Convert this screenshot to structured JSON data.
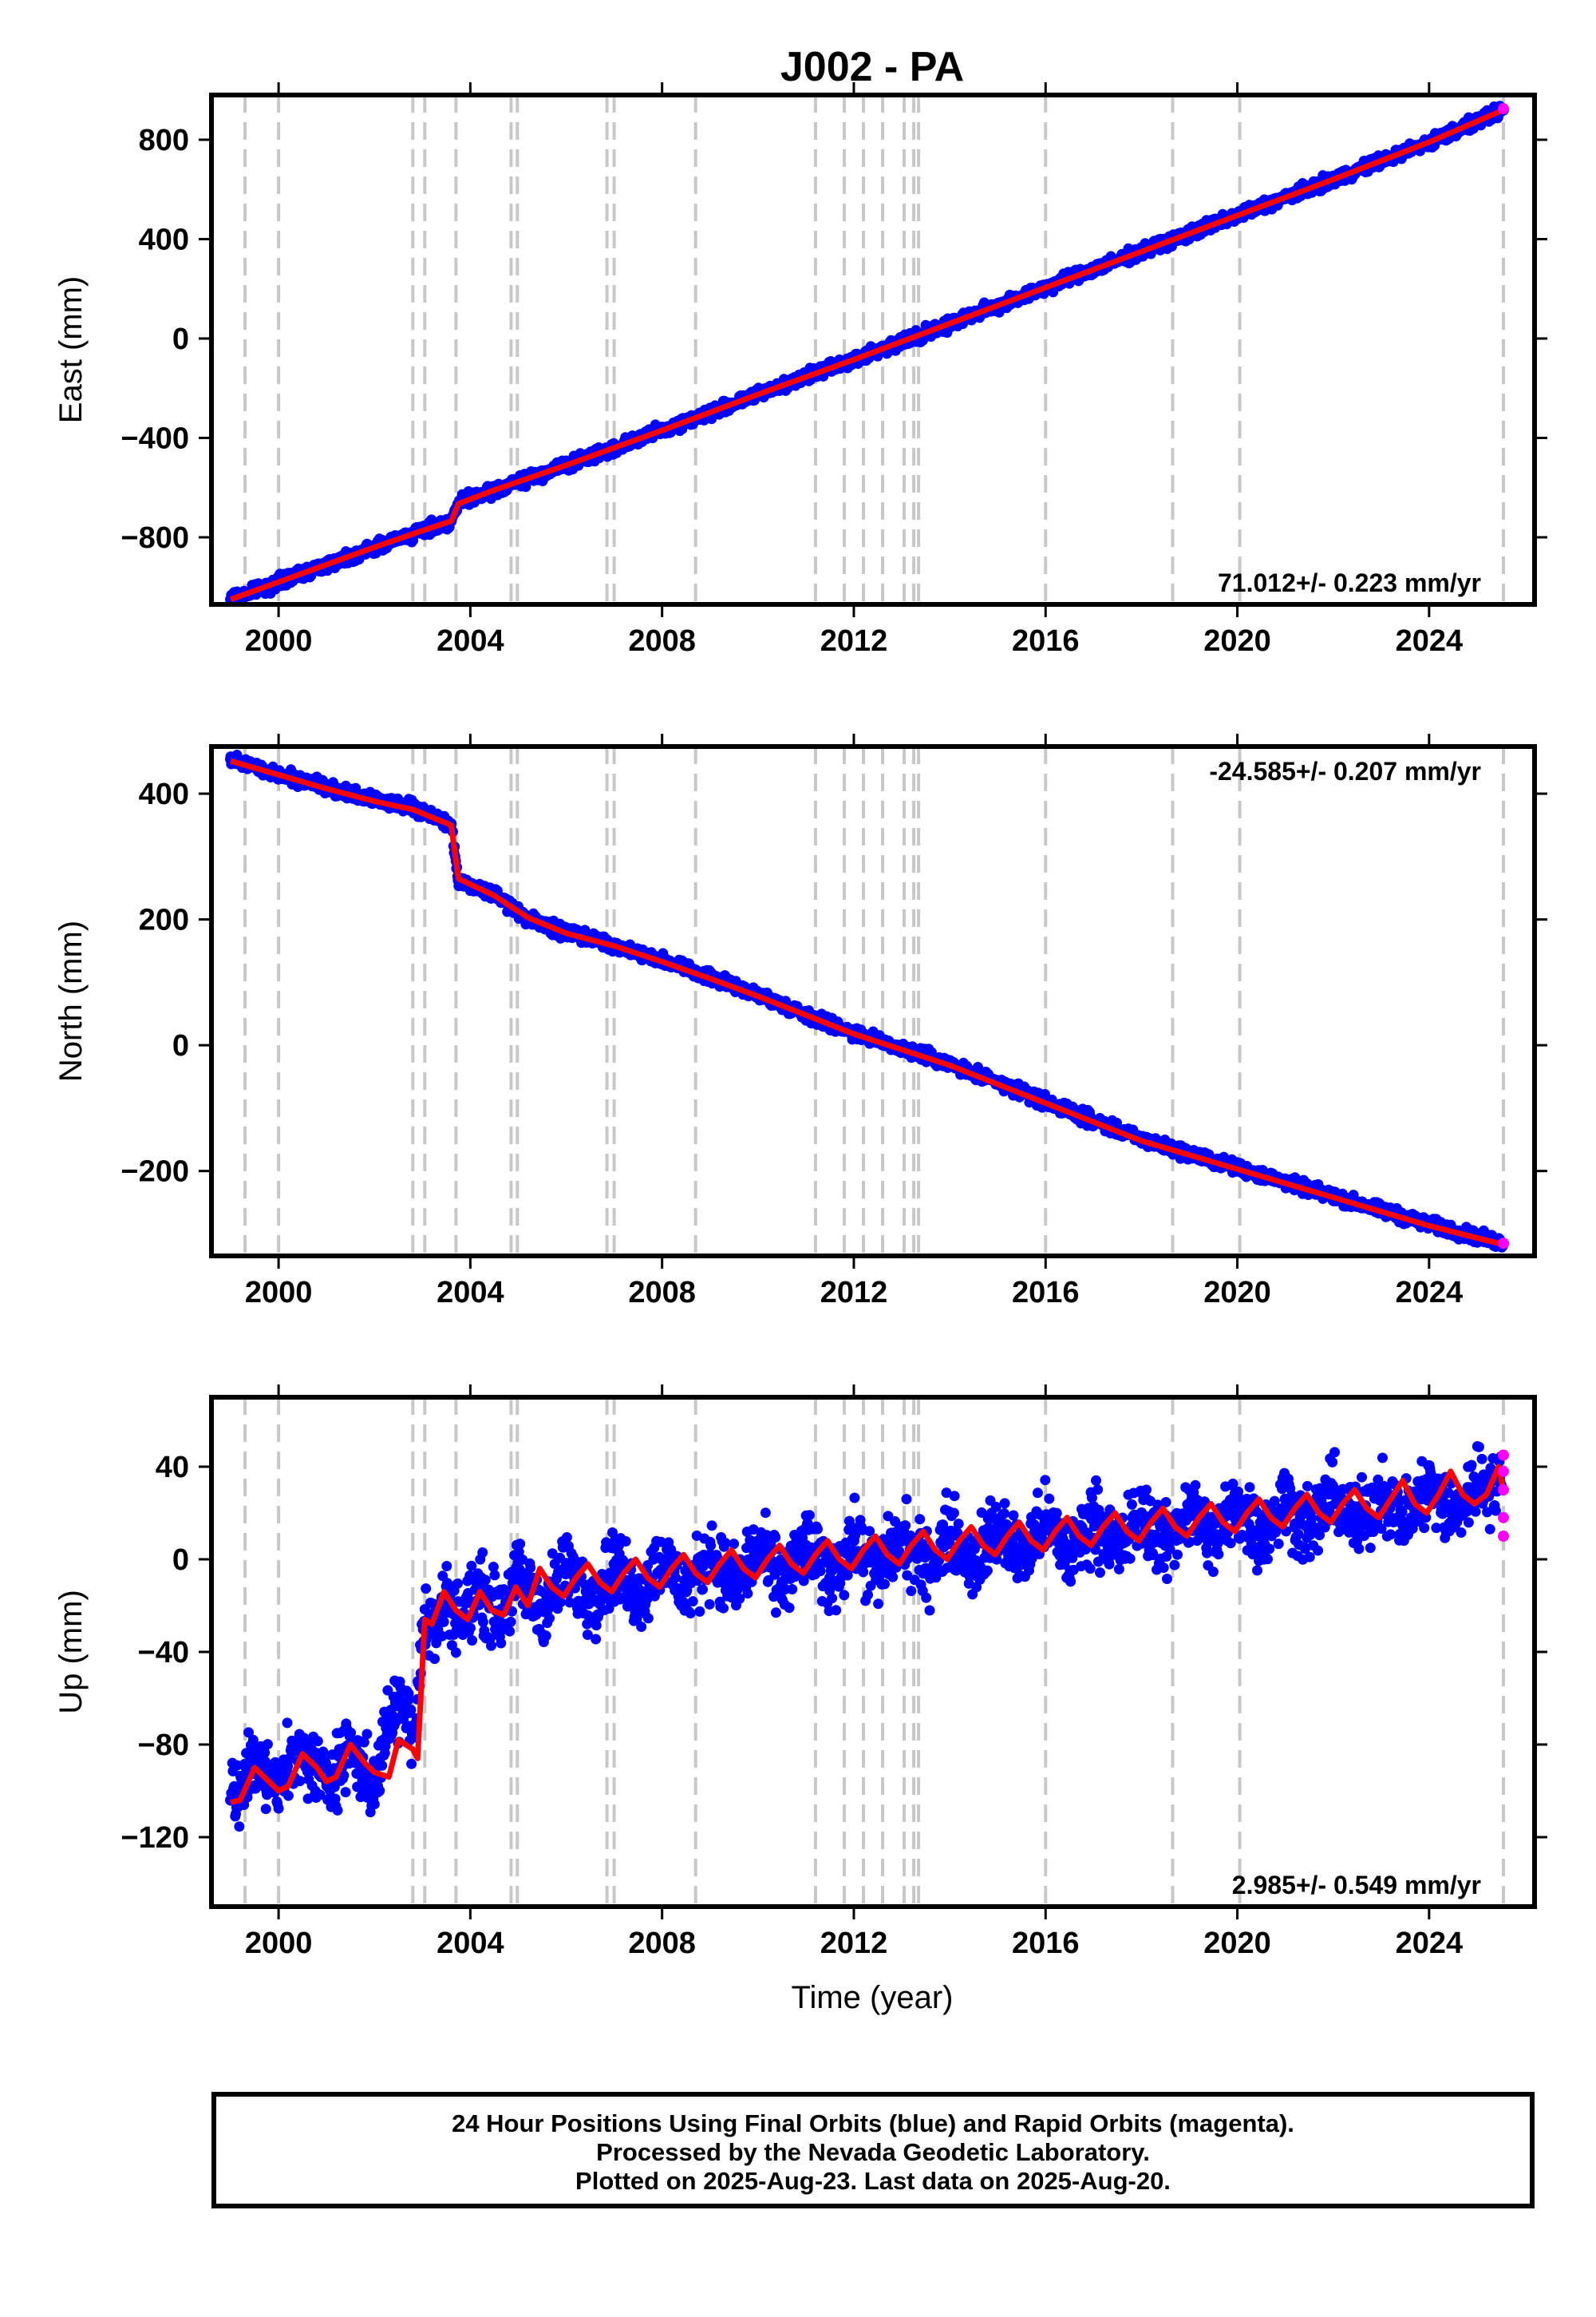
{
  "title": "J002 - PA",
  "xlabel": "Time (year)",
  "footer": [
    "24 Hour Positions Using Final Orbits (blue) and Rapid Orbits (magenta).",
    "Processed by the Nevada Geodetic Laboratory.",
    "Plotted on 2025-Aug-23. Last data on 2025-Aug-20."
  ],
  "colors": {
    "final": "#0000ff",
    "rapid": "#ff00ff",
    "model": "#ff0000",
    "event_line": "#c8c8c8"
  },
  "chart_data": [
    {
      "type": "scatter",
      "ylabel": "East (mm)",
      "xlim": [
        1998.6,
        2026.2
      ],
      "ylim": [
        -1070,
        980
      ],
      "xticks": [
        2000,
        2004,
        2008,
        2012,
        2016,
        2020,
        2024
      ],
      "yticks": [
        -800,
        -400,
        0,
        400,
        800
      ],
      "rate": "71.012+/- 0.223 mm/yr",
      "event_lines": [
        1999.3,
        2000.0,
        2002.8,
        2003.05,
        2003.7,
        2004.85,
        2004.98,
        2006.85,
        2007.0,
        2008.7,
        2011.2,
        2011.8,
        2012.2,
        2012.6,
        2013.05,
        2013.25,
        2013.35,
        2016.0,
        2018.65,
        2020.05,
        2025.55
      ],
      "series": [
        {
          "name": "Final Orbits",
          "kind": "points",
          "x": [
            1999.0,
            2000.0,
            2001.0,
            2002.0,
            2002.9,
            2003.6,
            2003.75,
            2004.5,
            2006.0,
            2008.0,
            2010.0,
            2012.0,
            2014.0,
            2016.0,
            2018.0,
            2020.0,
            2022.0,
            2024.0,
            2025.55
          ],
          "values": [
            -1050,
            -980,
            -910,
            -840,
            -780,
            -735,
            -665,
            -610,
            -510,
            -370,
            -225,
            -85,
            60,
            205,
            350,
            495,
            640,
            790,
            920
          ]
        },
        {
          "name": "Model",
          "kind": "line",
          "x": [
            1999.0,
            2000.0,
            2001.0,
            2002.0,
            2002.9,
            2003.6,
            2003.75,
            2004.5,
            2006.0,
            2008.0,
            2010.0,
            2012.0,
            2014.0,
            2016.0,
            2018.0,
            2020.0,
            2022.0,
            2024.0,
            2025.55
          ],
          "values": [
            -1050,
            -980,
            -910,
            -840,
            -780,
            -735,
            -665,
            -610,
            -510,
            -370,
            -225,
            -85,
            60,
            205,
            350,
            495,
            640,
            790,
            920
          ]
        },
        {
          "name": "Rapid Orbits",
          "kind": "points",
          "x": [
            2025.55
          ],
          "values": [
            925
          ]
        }
      ]
    },
    {
      "type": "scatter",
      "ylabel": "North (mm)",
      "xlim": [
        1998.6,
        2026.2
      ],
      "ylim": [
        -335,
        475
      ],
      "xticks": [
        2000,
        2004,
        2008,
        2012,
        2016,
        2020,
        2024
      ],
      "yticks": [
        -200,
        0,
        200,
        400
      ],
      "rate": "-24.585+/- 0.207 mm/yr",
      "event_lines": [
        1999.3,
        2000.0,
        2002.8,
        2003.05,
        2003.7,
        2004.85,
        2004.98,
        2006.85,
        2007.0,
        2008.7,
        2011.2,
        2011.8,
        2012.2,
        2012.6,
        2013.05,
        2013.25,
        2013.35,
        2016.0,
        2018.65,
        2020.05,
        2025.55
      ],
      "series": [
        {
          "name": "Final Orbits",
          "kind": "points",
          "x": [
            1999.0,
            2000.0,
            2001.0,
            2002.0,
            2002.8,
            2003.6,
            2003.75,
            2004.5,
            2005.2,
            2006.0,
            2007.0,
            2008.0,
            2009.0,
            2010.0,
            2011.0,
            2012.0,
            2013.0,
            2014.0,
            2016.0,
            2018.0,
            2020.0,
            2022.0,
            2024.0,
            2025.55
          ],
          "values": [
            455,
            432,
            410,
            390,
            378,
            352,
            262,
            240,
            200,
            180,
            160,
            135,
            108,
            80,
            50,
            20,
            -5,
            -30,
            -90,
            -150,
            -195,
            -240,
            -285,
            -315
          ]
        },
        {
          "name": "Model",
          "kind": "line",
          "x": [
            1999.0,
            2000.0,
            2001.0,
            2002.0,
            2002.8,
            2003.6,
            2003.75,
            2004.5,
            2005.2,
            2006.0,
            2007.0,
            2008.0,
            2009.0,
            2010.0,
            2011.0,
            2012.0,
            2013.0,
            2014.0,
            2016.0,
            2018.0,
            2020.0,
            2022.0,
            2024.0,
            2025.55
          ],
          "values": [
            452,
            430,
            408,
            388,
            375,
            350,
            265,
            238,
            203,
            178,
            158,
            133,
            106,
            78,
            48,
            18,
            -7,
            -32,
            -92,
            -152,
            -197,
            -242,
            -287,
            -317
          ]
        },
        {
          "name": "Rapid Orbits",
          "kind": "points",
          "x": [
            2025.55
          ],
          "values": [
            -315
          ]
        }
      ]
    },
    {
      "type": "scatter",
      "ylabel": "Up (mm)",
      "xlim": [
        1998.6,
        2026.2
      ],
      "ylim": [
        -150,
        70
      ],
      "xticks": [
        2000,
        2004,
        2008,
        2012,
        2016,
        2020,
        2024
      ],
      "yticks": [
        -120,
        -80,
        -40,
        0,
        40
      ],
      "rate": "2.985+/- 0.549 mm/yr",
      "event_lines": [
        1999.3,
        2000.0,
        2002.8,
        2003.05,
        2003.7,
        2004.85,
        2004.98,
        2006.85,
        2007.0,
        2008.7,
        2011.2,
        2011.8,
        2012.2,
        2012.6,
        2013.05,
        2013.25,
        2013.35,
        2016.0,
        2018.65,
        2020.05,
        2025.55
      ],
      "series": [
        {
          "name": "Final Orbits",
          "kind": "points",
          "x": [
            1999.0,
            1999.5,
            2000.0,
            2000.5,
            2001.0,
            2001.5,
            2002.0,
            2002.3,
            2002.6,
            2002.85,
            2003.0,
            2003.3,
            2003.5,
            2003.8,
            2004.2,
            2004.6,
            2005.0,
            2005.5,
            2006.0,
            2006.5,
            2007.0,
            2007.5,
            2008.0,
            2008.5,
            2009.0,
            2009.5,
            2010.0,
            2010.5,
            2011.0,
            2011.5,
            2012.0,
            2012.5,
            2013.0,
            2013.5,
            2014.0,
            2014.5,
            2015.0,
            2015.5,
            2016.0,
            2016.5,
            2017.0,
            2017.5,
            2018.0,
            2018.5,
            2019.0,
            2019.5,
            2020.0,
            2020.5,
            2021.0,
            2021.5,
            2022.0,
            2022.5,
            2023.0,
            2023.5,
            2024.0,
            2024.5,
            2025.0,
            2025.5
          ],
          "values": [
            -104,
            -88,
            -98,
            -84,
            -96,
            -80,
            -100,
            -68,
            -62,
            -72,
            -28,
            -30,
            -16,
            -26,
            -14,
            -24,
            -8,
            -22,
            -4,
            -18,
            -2,
            -16,
            0,
            -14,
            2,
            -12,
            4,
            -10,
            6,
            -8,
            8,
            -6,
            10,
            -4,
            12,
            -2,
            14,
            0,
            16,
            2,
            18,
            4,
            20,
            6,
            22,
            8,
            24,
            10,
            26,
            12,
            28,
            14,
            30,
            16,
            32,
            18,
            34,
            32
          ]
        },
        {
          "name": "Model",
          "kind": "line",
          "x": [
            1999.0,
            1999.2,
            1999.5,
            1999.8,
            2000.0,
            2000.2,
            2000.5,
            2000.8,
            2001.0,
            2001.2,
            2001.5,
            2001.8,
            2002.0,
            2002.3,
            2002.5,
            2002.8,
            2002.9,
            2003.05,
            2003.2,
            2003.45,
            2003.7,
            2003.95,
            2004.2,
            2004.45,
            2004.7,
            2004.95,
            2005.2,
            2005.45,
            2005.7,
            2005.95,
            2006.2,
            2006.45,
            2006.7,
            2006.95,
            2007.2,
            2007.45,
            2007.7,
            2007.95,
            2008.2,
            2008.45,
            2008.7,
            2008.95,
            2009.2,
            2009.45,
            2009.7,
            2009.95,
            2010.2,
            2010.45,
            2010.7,
            2010.95,
            2011.2,
            2011.45,
            2011.7,
            2011.95,
            2012.2,
            2012.45,
            2012.7,
            2012.95,
            2013.2,
            2013.45,
            2013.7,
            2013.95,
            2014.2,
            2014.45,
            2014.7,
            2014.95,
            2015.2,
            2015.45,
            2015.7,
            2015.95,
            2016.2,
            2016.45,
            2016.7,
            2016.95,
            2017.2,
            2017.45,
            2017.7,
            2017.95,
            2018.2,
            2018.45,
            2018.7,
            2018.95,
            2019.2,
            2019.45,
            2019.7,
            2019.95,
            2020.2,
            2020.45,
            2020.7,
            2020.95,
            2021.2,
            2021.45,
            2021.7,
            2021.95,
            2022.2,
            2022.45,
            2022.7,
            2022.95,
            2023.2,
            2023.45,
            2023.7,
            2023.95,
            2024.2,
            2024.45,
            2024.7,
            2024.95,
            2025.2,
            2025.45,
            2025.55
          ],
          "values": [
            -105,
            -104,
            -90,
            -96,
            -100,
            -98,
            -84,
            -90,
            -96,
            -94,
            -80,
            -88,
            -92,
            -94,
            -78,
            -82,
            -86,
            -26,
            -28,
            -14,
            -22,
            -26,
            -14,
            -22,
            -24,
            -12,
            -20,
            -4,
            -12,
            -16,
            -8,
            -2,
            -10,
            -14,
            -6,
            0,
            -8,
            -12,
            -4,
            2,
            -6,
            -10,
            -2,
            4,
            -4,
            -8,
            0,
            6,
            -2,
            -6,
            2,
            8,
            0,
            -4,
            4,
            10,
            2,
            -2,
            6,
            12,
            4,
            0,
            8,
            14,
            6,
            2,
            10,
            16,
            8,
            4,
            12,
            18,
            10,
            6,
            14,
            20,
            12,
            8,
            16,
            22,
            14,
            10,
            18,
            24,
            16,
            12,
            20,
            26,
            18,
            14,
            22,
            28,
            20,
            16,
            24,
            30,
            22,
            18,
            26,
            34,
            24,
            20,
            28,
            38,
            28,
            24,
            28,
            40,
            30
          ]
        },
        {
          "name": "Rapid Orbits",
          "kind": "points",
          "x": [
            2025.55,
            2025.55,
            2025.55,
            2025.55,
            2025.55
          ],
          "values": [
            45,
            38,
            30,
            18,
            10
          ]
        }
      ]
    }
  ]
}
